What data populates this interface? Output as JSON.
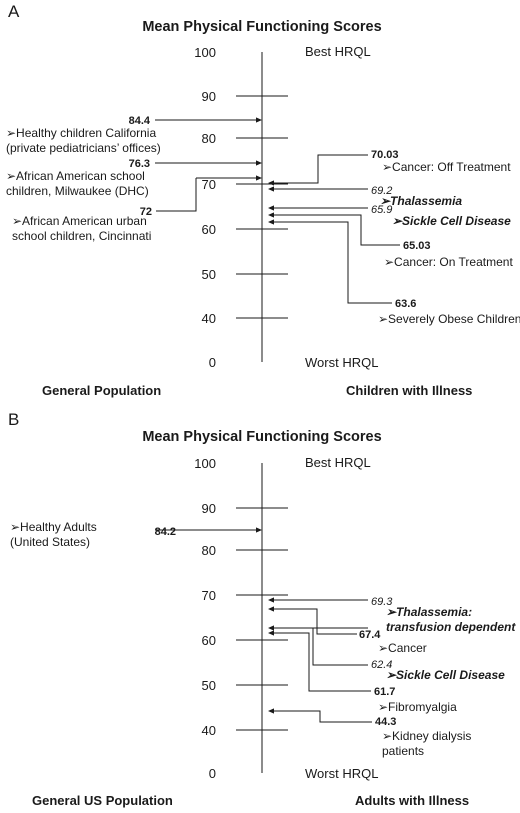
{
  "chart_data": [
    {
      "panel_letter": "A",
      "type": "scale",
      "title": "Mean Physical Functioning Scores",
      "ticks": [
        0,
        40,
        50,
        60,
        70,
        80,
        90,
        100
      ],
      "top_label": "Best HRQL",
      "bottom_label": "Worst HRQL",
      "left_footer": "General Population",
      "right_footer": "Children with Illness",
      "left_items": [
        {
          "value": "84.4",
          "lines": [
            "➢Healthy children California",
            "(private pediatricians’ offices)"
          ]
        },
        {
          "value": "76.3",
          "lines": [
            "➢African American school",
            "children, Milwaukee (DHC)"
          ]
        },
        {
          "value": "72",
          "lines": [
            "➢African American urban",
            "school children, Cincinnati"
          ]
        }
      ],
      "right_items": [
        {
          "value": "70.03",
          "lines": [
            "➢Cancer: Off Treatment"
          ],
          "italic": false
        },
        {
          "value": "69.2",
          "lines": [
            "➢Thalassemia"
          ],
          "italic": true
        },
        {
          "value": "65.9",
          "lines": [
            "➢Sickle Cell Disease"
          ],
          "italic": true
        },
        {
          "value": "65.03",
          "lines": [
            "➢Cancer: On Treatment"
          ],
          "italic": false
        },
        {
          "value": "63.6",
          "lines": [
            "➢Severely Obese Children"
          ],
          "italic": false
        }
      ]
    },
    {
      "panel_letter": "B",
      "type": "scale",
      "title": "Mean Physical Functioning Scores",
      "ticks": [
        0,
        40,
        50,
        60,
        70,
        80,
        90,
        100
      ],
      "top_label": "Best HRQL",
      "bottom_label": "Worst HRQL",
      "left_footer": "General US Population",
      "right_footer": "Adults with Illness",
      "left_items": [
        {
          "value": "84.2",
          "lines": [
            "➢Healthy Adults",
            "(United States)"
          ]
        }
      ],
      "right_items": [
        {
          "value": "69.3",
          "lines": [
            "➢Thalassemia:",
            "transfusion dependent"
          ],
          "italic": true
        },
        {
          "value": "67.4",
          "lines": [
            "➢Cancer"
          ],
          "italic": false
        },
        {
          "value": "62.4",
          "lines": [
            "➢Sickle Cell Disease"
          ],
          "italic": true
        },
        {
          "value": "61.7",
          "lines": [
            "➢Fibromyalgia"
          ],
          "italic": false
        },
        {
          "value": "44.3",
          "lines": [
            "➢Kidney dialysis",
            "patients"
          ],
          "italic": false
        }
      ]
    }
  ]
}
